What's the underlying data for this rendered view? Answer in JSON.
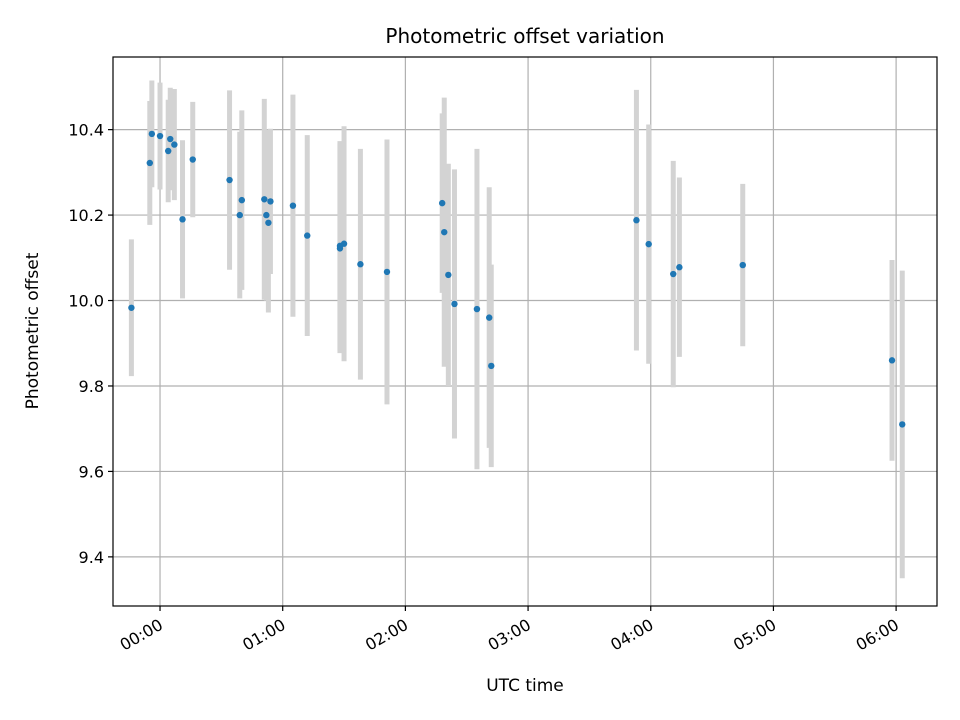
{
  "chart_data": {
    "type": "scatter",
    "title": "Photometric offset variation",
    "xlabel": "UTC time",
    "ylabel": "Photometric offset",
    "x_unit": "UTC time (HH:MM)",
    "xlim": [
      "-00:23",
      "06:20"
    ],
    "ylim": [
      9.285,
      10.57
    ],
    "x_ticks": [
      "00:00",
      "01:00",
      "02:00",
      "03:00",
      "04:00",
      "05:00",
      "06:00"
    ],
    "y_ticks": [
      9.4,
      9.6,
      9.8,
      10.0,
      10.2,
      10.4
    ],
    "y_tick_labels": [
      "9.4",
      "9.6",
      "9.8",
      "10.0",
      "10.2",
      "10.4"
    ],
    "x_tick_rotation_deg": 30,
    "grid": true,
    "legend": "none",
    "colors": {
      "marker": "#1f77b4",
      "errorbar": "#d3d3d3",
      "grid": "#b0b0b0"
    },
    "points": [
      {
        "x": "-00:14",
        "y": 9.983,
        "err": 0.16
      },
      {
        "x": "-00:05",
        "y": 10.322,
        "err": 0.145
      },
      {
        "x": "-00:04",
        "y": 10.39,
        "err": 0.125
      },
      {
        "x": "00:00",
        "y": 10.385,
        "err": 0.125
      },
      {
        "x": "00:04",
        "y": 10.35,
        "err": 0.12
      },
      {
        "x": "00:05",
        "y": 10.378,
        "err": 0.12
      },
      {
        "x": "00:07",
        "y": 10.365,
        "err": 0.13
      },
      {
        "x": "00:11",
        "y": 10.19,
        "err": 0.185
      },
      {
        "x": "00:16",
        "y": 10.33,
        "err": 0.135
      },
      {
        "x": "00:34",
        "y": 10.282,
        "err": 0.21
      },
      {
        "x": "00:39",
        "y": 10.2,
        "err": 0.195
      },
      {
        "x": "00:40",
        "y": 10.235,
        "err": 0.21
      },
      {
        "x": "00:51",
        "y": 10.237,
        "err": 0.235
      },
      {
        "x": "00:52",
        "y": 10.2,
        "err": 0.2
      },
      {
        "x": "00:53",
        "y": 10.182,
        "err": 0.21
      },
      {
        "x": "00:54",
        "y": 10.232,
        "err": 0.17
      },
      {
        "x": "01:05",
        "y": 10.222,
        "err": 0.26
      },
      {
        "x": "01:12",
        "y": 10.152,
        "err": 0.235
      },
      {
        "x": "01:28",
        "y": 10.122,
        "err": 0.245
      },
      {
        "x": "01:28",
        "y": 10.128,
        "err": 0.245
      },
      {
        "x": "01:30",
        "y": 10.133,
        "err": 0.275
      },
      {
        "x": "01:38",
        "y": 10.085,
        "err": 0.27
      },
      {
        "x": "01:51",
        "y": 10.067,
        "err": 0.31
      },
      {
        "x": "02:18",
        "y": 10.228,
        "err": 0.21
      },
      {
        "x": "02:19",
        "y": 10.16,
        "err": 0.315
      },
      {
        "x": "02:21",
        "y": 10.06,
        "err": 0.26
      },
      {
        "x": "02:24",
        "y": 9.992,
        "err": 0.315
      },
      {
        "x": "02:35",
        "y": 9.98,
        "err": 0.375
      },
      {
        "x": "02:41",
        "y": 9.96,
        "err": 0.305
      },
      {
        "x": "02:42",
        "y": 9.847,
        "err": 0.237
      },
      {
        "x": "03:53",
        "y": 10.188,
        "err": 0.305
      },
      {
        "x": "03:59",
        "y": 10.132,
        "err": 0.28
      },
      {
        "x": "04:11",
        "y": 10.062,
        "err": 0.265
      },
      {
        "x": "04:14",
        "y": 10.078,
        "err": 0.21
      },
      {
        "x": "04:45",
        "y": 10.083,
        "err": 0.19
      },
      {
        "x": "05:58",
        "y": 9.86,
        "err": 0.235
      },
      {
        "x": "06:03",
        "y": 9.71,
        "err": 0.36
      }
    ]
  }
}
